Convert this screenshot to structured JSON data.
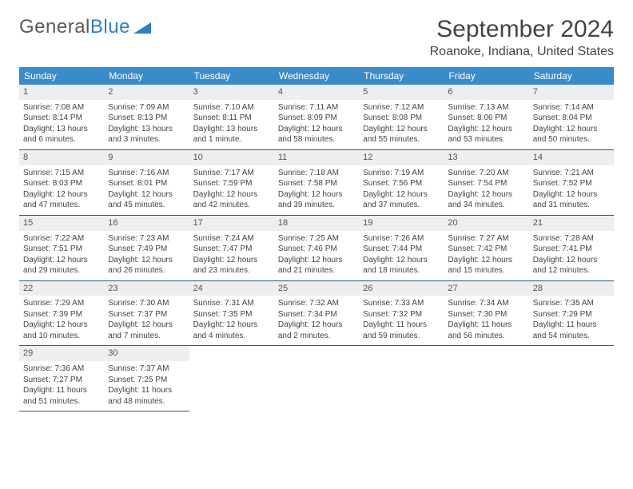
{
  "logo": {
    "part1": "General",
    "part2": "Blue"
  },
  "title": "September 2024",
  "location": "Roanoke, Indiana, United States",
  "colors": {
    "header_bg": "#3a8bc9",
    "header_fg": "#ffffff",
    "daynum_bg": "#eceeef",
    "cell_border": "#2a5a85",
    "text": "#444444",
    "logo_gray": "#5a5a5a",
    "logo_blue": "#2f7fc1",
    "page_bg": "#ffffff"
  },
  "daynames": [
    "Sunday",
    "Monday",
    "Tuesday",
    "Wednesday",
    "Thursday",
    "Friday",
    "Saturday"
  ],
  "grid": {
    "columns": 7,
    "rows_of_cells": 5
  },
  "days": [
    {
      "n": 1,
      "sunrise": "Sunrise: 7:08 AM",
      "sunset": "Sunset: 8:14 PM",
      "daylight": "Daylight: 13 hours and 6 minutes."
    },
    {
      "n": 2,
      "sunrise": "Sunrise: 7:09 AM",
      "sunset": "Sunset: 8:13 PM",
      "daylight": "Daylight: 13 hours and 3 minutes."
    },
    {
      "n": 3,
      "sunrise": "Sunrise: 7:10 AM",
      "sunset": "Sunset: 8:11 PM",
      "daylight": "Daylight: 13 hours and 1 minute."
    },
    {
      "n": 4,
      "sunrise": "Sunrise: 7:11 AM",
      "sunset": "Sunset: 8:09 PM",
      "daylight": "Daylight: 12 hours and 58 minutes."
    },
    {
      "n": 5,
      "sunrise": "Sunrise: 7:12 AM",
      "sunset": "Sunset: 8:08 PM",
      "daylight": "Daylight: 12 hours and 55 minutes."
    },
    {
      "n": 6,
      "sunrise": "Sunrise: 7:13 AM",
      "sunset": "Sunset: 8:06 PM",
      "daylight": "Daylight: 12 hours and 53 minutes."
    },
    {
      "n": 7,
      "sunrise": "Sunrise: 7:14 AM",
      "sunset": "Sunset: 8:04 PM",
      "daylight": "Daylight: 12 hours and 50 minutes."
    },
    {
      "n": 8,
      "sunrise": "Sunrise: 7:15 AM",
      "sunset": "Sunset: 8:03 PM",
      "daylight": "Daylight: 12 hours and 47 minutes."
    },
    {
      "n": 9,
      "sunrise": "Sunrise: 7:16 AM",
      "sunset": "Sunset: 8:01 PM",
      "daylight": "Daylight: 12 hours and 45 minutes."
    },
    {
      "n": 10,
      "sunrise": "Sunrise: 7:17 AM",
      "sunset": "Sunset: 7:59 PM",
      "daylight": "Daylight: 12 hours and 42 minutes."
    },
    {
      "n": 11,
      "sunrise": "Sunrise: 7:18 AM",
      "sunset": "Sunset: 7:58 PM",
      "daylight": "Daylight: 12 hours and 39 minutes."
    },
    {
      "n": 12,
      "sunrise": "Sunrise: 7:19 AM",
      "sunset": "Sunset: 7:56 PM",
      "daylight": "Daylight: 12 hours and 37 minutes."
    },
    {
      "n": 13,
      "sunrise": "Sunrise: 7:20 AM",
      "sunset": "Sunset: 7:54 PM",
      "daylight": "Daylight: 12 hours and 34 minutes."
    },
    {
      "n": 14,
      "sunrise": "Sunrise: 7:21 AM",
      "sunset": "Sunset: 7:52 PM",
      "daylight": "Daylight: 12 hours and 31 minutes."
    },
    {
      "n": 15,
      "sunrise": "Sunrise: 7:22 AM",
      "sunset": "Sunset: 7:51 PM",
      "daylight": "Daylight: 12 hours and 29 minutes."
    },
    {
      "n": 16,
      "sunrise": "Sunrise: 7:23 AM",
      "sunset": "Sunset: 7:49 PM",
      "daylight": "Daylight: 12 hours and 26 minutes."
    },
    {
      "n": 17,
      "sunrise": "Sunrise: 7:24 AM",
      "sunset": "Sunset: 7:47 PM",
      "daylight": "Daylight: 12 hours and 23 minutes."
    },
    {
      "n": 18,
      "sunrise": "Sunrise: 7:25 AM",
      "sunset": "Sunset: 7:46 PM",
      "daylight": "Daylight: 12 hours and 21 minutes."
    },
    {
      "n": 19,
      "sunrise": "Sunrise: 7:26 AM",
      "sunset": "Sunset: 7:44 PM",
      "daylight": "Daylight: 12 hours and 18 minutes."
    },
    {
      "n": 20,
      "sunrise": "Sunrise: 7:27 AM",
      "sunset": "Sunset: 7:42 PM",
      "daylight": "Daylight: 12 hours and 15 minutes."
    },
    {
      "n": 21,
      "sunrise": "Sunrise: 7:28 AM",
      "sunset": "Sunset: 7:41 PM",
      "daylight": "Daylight: 12 hours and 12 minutes."
    },
    {
      "n": 22,
      "sunrise": "Sunrise: 7:29 AM",
      "sunset": "Sunset: 7:39 PM",
      "daylight": "Daylight: 12 hours and 10 minutes."
    },
    {
      "n": 23,
      "sunrise": "Sunrise: 7:30 AM",
      "sunset": "Sunset: 7:37 PM",
      "daylight": "Daylight: 12 hours and 7 minutes."
    },
    {
      "n": 24,
      "sunrise": "Sunrise: 7:31 AM",
      "sunset": "Sunset: 7:35 PM",
      "daylight": "Daylight: 12 hours and 4 minutes."
    },
    {
      "n": 25,
      "sunrise": "Sunrise: 7:32 AM",
      "sunset": "Sunset: 7:34 PM",
      "daylight": "Daylight: 12 hours and 2 minutes."
    },
    {
      "n": 26,
      "sunrise": "Sunrise: 7:33 AM",
      "sunset": "Sunset: 7:32 PM",
      "daylight": "Daylight: 11 hours and 59 minutes."
    },
    {
      "n": 27,
      "sunrise": "Sunrise: 7:34 AM",
      "sunset": "Sunset: 7:30 PM",
      "daylight": "Daylight: 11 hours and 56 minutes."
    },
    {
      "n": 28,
      "sunrise": "Sunrise: 7:35 AM",
      "sunset": "Sunset: 7:29 PM",
      "daylight": "Daylight: 11 hours and 54 minutes."
    },
    {
      "n": 29,
      "sunrise": "Sunrise: 7:36 AM",
      "sunset": "Sunset: 7:27 PM",
      "daylight": "Daylight: 11 hours and 51 minutes."
    },
    {
      "n": 30,
      "sunrise": "Sunrise: 7:37 AM",
      "sunset": "Sunset: 7:25 PM",
      "daylight": "Daylight: 11 hours and 48 minutes."
    }
  ],
  "trailing_empty_cells": 5
}
